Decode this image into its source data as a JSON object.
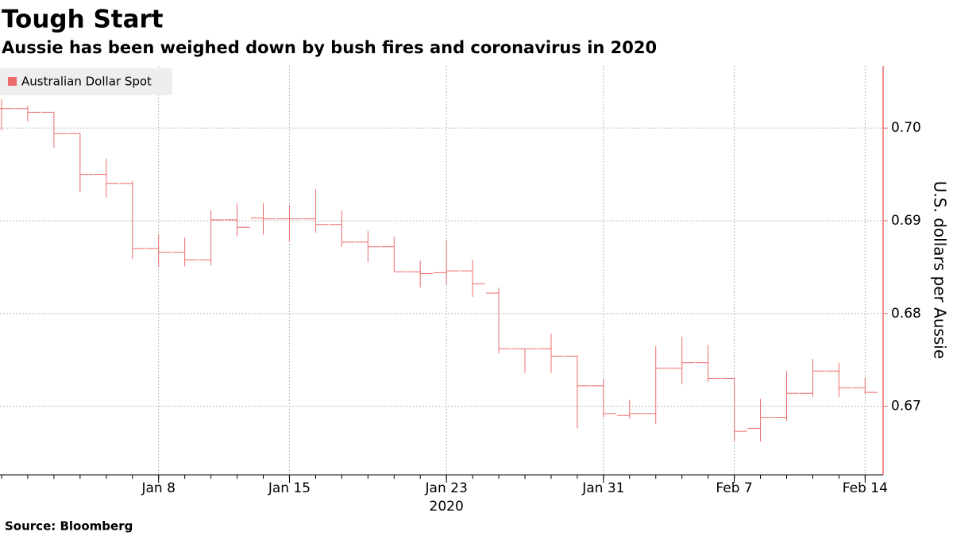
{
  "chart_data": {
    "type": "ohlc",
    "title": "Tough Start",
    "subtitle": "Aussie has been weighed down by bush fires and coronavirus in 2020",
    "source": "Source: Bloomberg",
    "ylabel": "U.S. dollars per Aussie",
    "x_year_label": "2020",
    "categories": [
      null,
      null,
      null,
      null,
      null,
      null,
      "Jan 8",
      null,
      null,
      null,
      null,
      "Jan 15",
      null,
      null,
      null,
      null,
      null,
      "Jan 23",
      null,
      null,
      null,
      null,
      null,
      "Jan 31",
      null,
      null,
      null,
      null,
      "Feb 7",
      null,
      null,
      null,
      null,
      "Feb 14"
    ],
    "series": [
      {
        "name": "Australian Dollar Spot",
        "color": "#ec6a6a",
        "open": [
          0.7021,
          0.7021,
          0.7017,
          0.6994,
          0.695,
          0.694,
          0.687,
          0.6866,
          0.6858,
          0.6901,
          0.6903,
          0.6902,
          0.6902,
          0.6896,
          0.6877,
          0.6872,
          0.6845,
          0.6844,
          0.6846,
          0.6822,
          0.6762,
          0.6762,
          0.6754,
          0.6722,
          0.669,
          0.6692,
          0.6741,
          0.6747,
          0.673,
          0.6676,
          0.6688,
          0.6714,
          0.6738,
          0.672
        ],
        "high": [
          0.7031,
          0.7024,
          0.7017,
          0.6994,
          0.6967,
          0.6943,
          0.6885,
          0.6882,
          0.6911,
          0.6919,
          0.6919,
          0.6917,
          0.6934,
          0.6911,
          0.6889,
          0.6883,
          0.6857,
          0.6879,
          0.6858,
          0.6828,
          0.6762,
          0.6778,
          0.6755,
          0.6729,
          0.6707,
          0.6765,
          0.6775,
          0.6766,
          0.6731,
          0.6708,
          0.6738,
          0.6751,
          0.6747,
          0.6731
        ],
        "low": [
          0.6997,
          0.7007,
          0.6979,
          0.6931,
          0.6925,
          0.6859,
          0.685,
          0.6851,
          0.6852,
          0.6883,
          0.6885,
          0.6878,
          0.6887,
          0.6872,
          0.6855,
          0.6845,
          0.6828,
          0.6831,
          0.6818,
          0.6757,
          0.6736,
          0.6736,
          0.6676,
          0.6688,
          0.6687,
          0.6681,
          0.6724,
          0.6726,
          0.6662,
          0.6662,
          0.6684,
          0.671,
          0.671,
          0.6713
        ],
        "close": [
          0.7021,
          0.7017,
          0.6994,
          0.695,
          0.694,
          0.687,
          0.6866,
          0.6858,
          0.6901,
          0.6893,
          0.6902,
          0.6902,
          0.6896,
          0.6877,
          0.6872,
          0.6845,
          0.6843,
          0.6846,
          0.6832,
          0.6762,
          0.6762,
          0.6754,
          0.6722,
          0.6692,
          0.6692,
          0.6741,
          0.6747,
          0.673,
          0.6673,
          0.6688,
          0.6714,
          0.6738,
          0.672,
          0.6715
        ]
      }
    ],
    "ylim": [
      0.6626,
      0.7067
    ],
    "yticks": [
      {
        "value": 0.67,
        "label": "0.67"
      },
      {
        "value": 0.68,
        "label": "0.68"
      },
      {
        "value": 0.69,
        "label": "0.69"
      },
      {
        "value": 0.7,
        "label": "0.70"
      }
    ],
    "grid": true,
    "legend": "upper left"
  }
}
